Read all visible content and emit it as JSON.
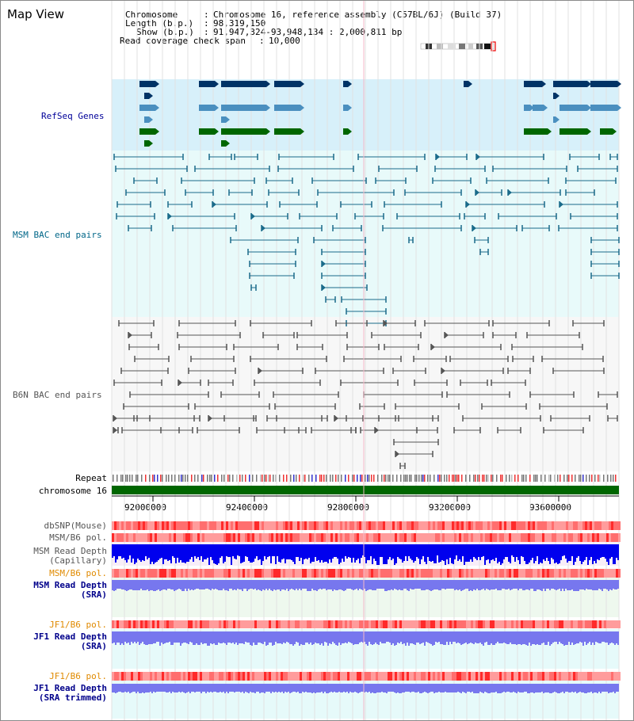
{
  "view_title": "Map View",
  "info": {
    "chromosome_label": "Chromosome",
    "chromosome_value": "Chromosome 16, reference assembly (C57BL/6J) (Build 37)",
    "length_label": "Length (b.p.)",
    "length_value": "98,319,150",
    "show_label": "Show (b.p.)",
    "show_value": "91,947,324-93,948,134 : 2,000,811 bp",
    "coverage_label": "Read coverage check span",
    "coverage_value": "10,000"
  },
  "tracks": {
    "refseq": "RefSeq Genes",
    "msm_bac": "MSM BAC end pairs",
    "b6n_bac": "B6N BAC end pairs",
    "repeat": "Repeat",
    "chromosome": "chromosome 16",
    "dbsnp": "dbSNP(Mouse)",
    "msm_b6_pol_1": "MSM/B6 pol.",
    "msm_depth_cap_1": "MSM Read Depth",
    "msm_depth_cap_2": "(Capillary)",
    "msm_b6_pol_2": "MSM/B6 pol.",
    "msm_depth_sra_1": "MSM Read Depth",
    "msm_depth_sra_2": "(SRA)",
    "jf1_b6_pol_1": "JF1/B6 pol.",
    "jf1_depth_sra_1": "JF1 Read Depth",
    "jf1_depth_sra_2": "(SRA)",
    "jf1_b6_pol_2": "JF1/B6 pol.",
    "jf1_depth_trim_1": "JF1 Read Depth",
    "jf1_depth_trim_2": "(SRA trimmed)"
  },
  "axis": {
    "ticks": [
      "92000000",
      "92400000",
      "92800000",
      "93200000",
      "93600000"
    ],
    "range": [
      91947324,
      93948134
    ]
  },
  "colors": {
    "refseq_dark": "#003366",
    "refseq_light": "#4a8fbf",
    "refseq_green": "#006600",
    "msm_line": "#1a6b8a",
    "b6n_line": "#555555",
    "chrom_bar": "#006600",
    "depth_blue": "#0000ee",
    "depth_light_blue": "#7777ee",
    "pol_red": "#ff6666"
  }
}
